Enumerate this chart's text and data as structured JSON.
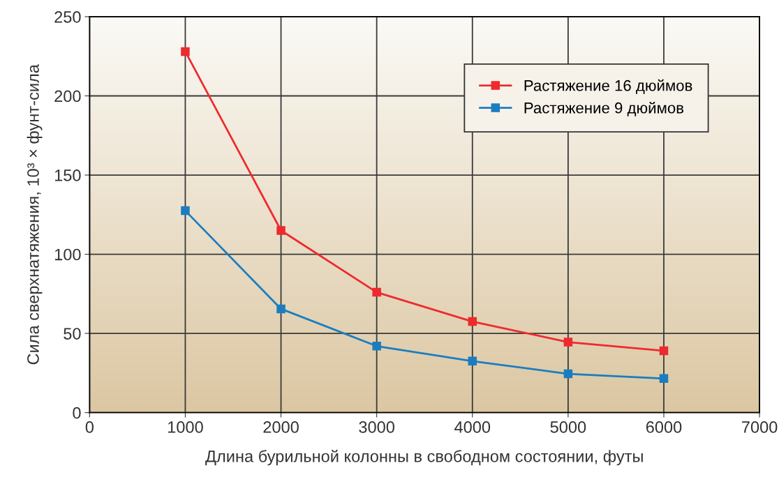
{
  "chart_data": {
    "type": "line",
    "xlabel": "Длина бурильной колонны в свободном состоянии, футы",
    "ylabel": "Сила сверхнатяжения, 10³ × фунт-сила",
    "x": [
      1000,
      2000,
      3000,
      4000,
      5000,
      6000
    ],
    "series": [
      {
        "name": "Растяжение 16 дюймов",
        "color": "#ee2a2e",
        "values": [
          228,
          115,
          76,
          57.5,
          44.5,
          39
        ]
      },
      {
        "name": "Растяжение 9 дюймов",
        "color": "#1b7dc0",
        "values": [
          127.5,
          65.5,
          42,
          32.5,
          24.5,
          21.5
        ]
      }
    ],
    "xlim": [
      0,
      7000
    ],
    "xticks": [
      0,
      1000,
      2000,
      3000,
      4000,
      5000,
      6000,
      7000
    ],
    "ylim": [
      0,
      250
    ],
    "yticks": [
      0,
      50,
      100,
      150,
      200,
      250
    ],
    "grid": true,
    "legend": "top right",
    "marker": "square",
    "line_style": "solid"
  }
}
